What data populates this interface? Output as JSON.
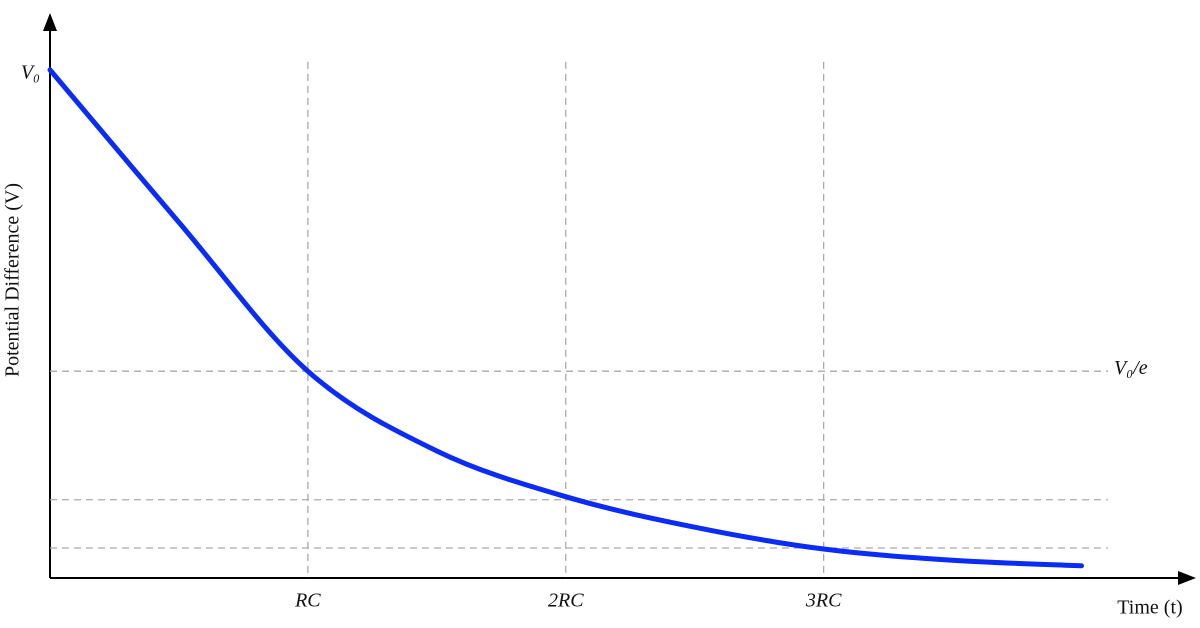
{
  "chart_data": {
    "type": "line",
    "x_label": "Time (t)",
    "y_label": "Potential Difference (V)",
    "x": [
      0,
      0.5,
      1,
      1.5,
      2,
      2.5,
      3,
      3.5,
      4
    ],
    "series": [
      {
        "color": "#0a2cf5",
        "values": [
          1.0,
          0.7,
          0.407,
          0.25,
          0.16,
          0.1,
          0.057,
          0.035,
          0.024
        ]
      }
    ],
    "xlim": [
      0,
      4.44
    ],
    "ylim": [
      0,
      1.11
    ],
    "xticks": [
      {
        "value": 1,
        "label": "RC"
      },
      {
        "value": 2,
        "label": "2RC"
      },
      {
        "value": 3,
        "label": "3RC"
      }
    ],
    "yticks": [
      {
        "value": 1.0,
        "label": "V₀"
      },
      {
        "value": 0.407,
        "label": "V₀/e"
      },
      {
        "value": 0.154,
        "label": null
      },
      {
        "value": 0.059,
        "label": null
      }
    ],
    "grid": true
  }
}
